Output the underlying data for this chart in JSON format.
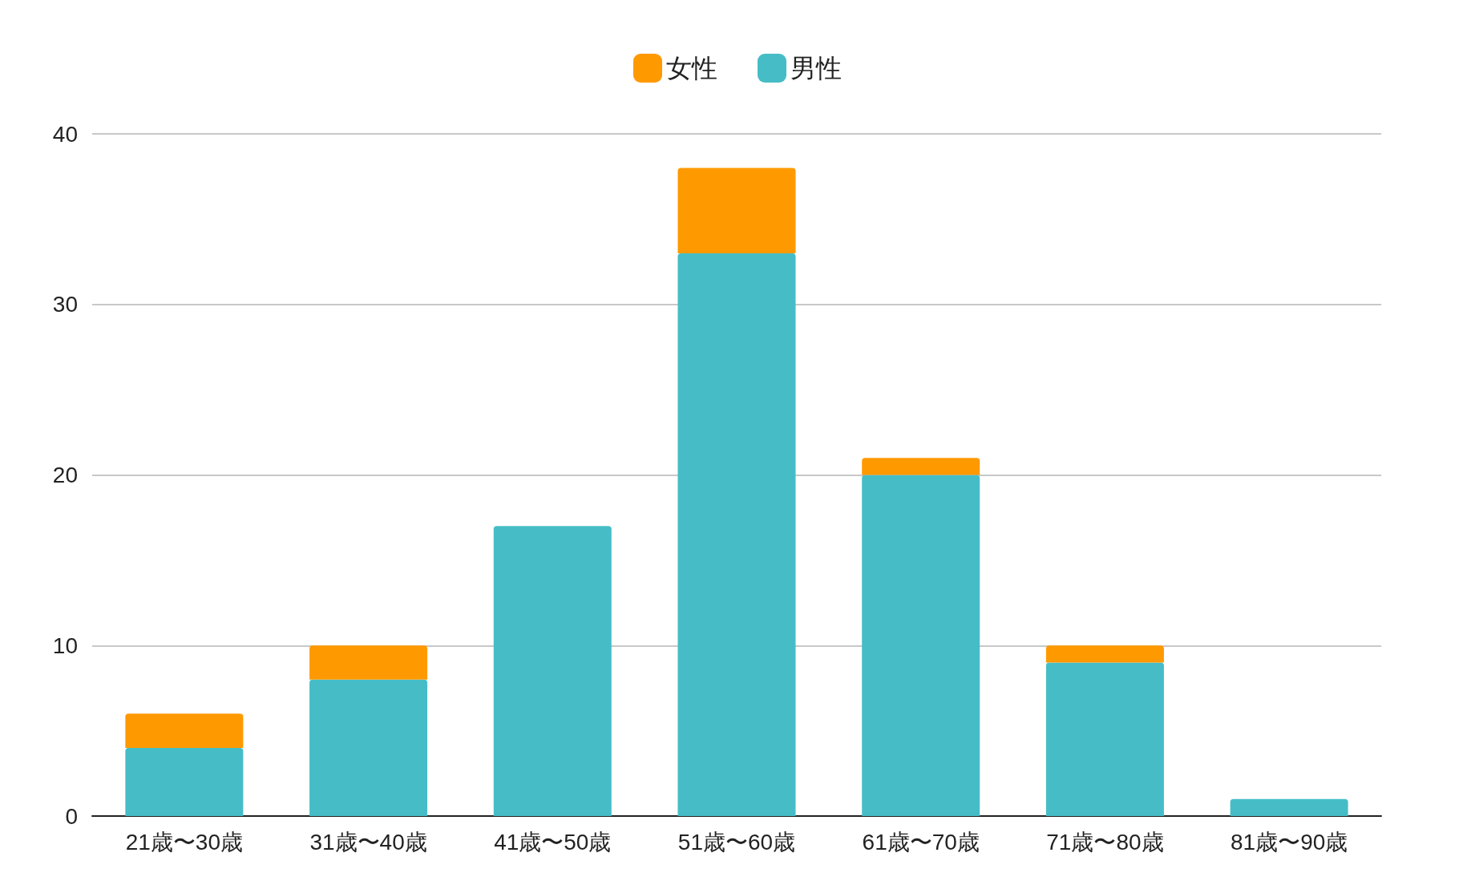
{
  "chart_data": {
    "type": "bar",
    "stacked": true,
    "categories": [
      "21歳〜30歳",
      "31歳〜40歳",
      "41歳〜50歳",
      "51歳〜60歳",
      "61歳〜70歳",
      "71歳〜80歳",
      "81歳〜90歳"
    ],
    "series": [
      {
        "name": "男性",
        "color": "#46bdc6",
        "values": [
          4,
          8,
          17,
          33,
          20,
          9,
          1
        ]
      },
      {
        "name": "女性",
        "color": "#ff9900",
        "values": [
          2,
          2,
          0,
          5,
          1,
          1,
          0
        ]
      }
    ],
    "ylim": [
      0,
      40
    ],
    "yticks": [
      0,
      10,
      20,
      30,
      40
    ],
    "grid": "y",
    "legend": "top"
  }
}
